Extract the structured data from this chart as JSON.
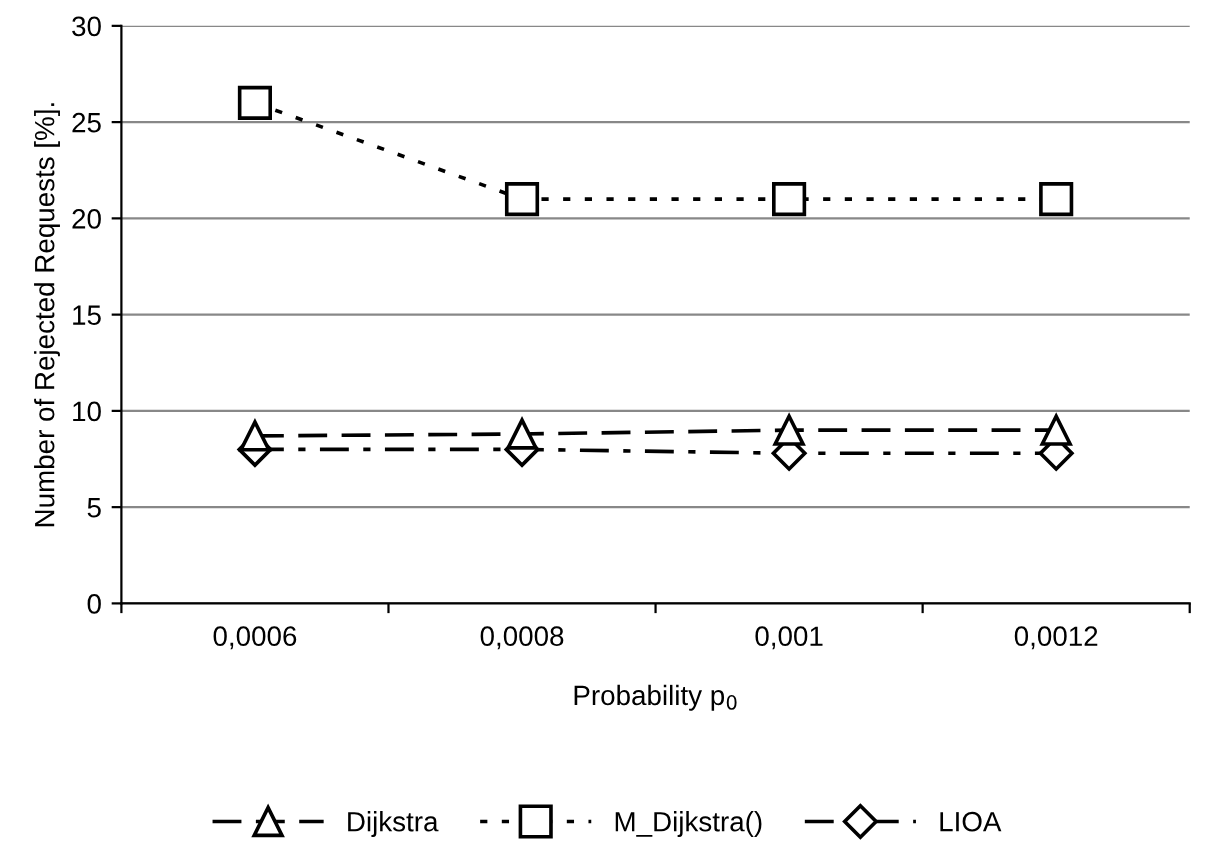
{
  "chart_data": {
    "type": "line",
    "xlabel": "Probability p$_{0}$",
    "ylabel": "Number of Rejected Requests [%].",
    "categories": [
      "0,0006",
      "0,0008",
      "0,001",
      "0,0012"
    ],
    "series": [
      {
        "name": "Dijkstra",
        "color": "#000000",
        "values": [
          8.7,
          8.8,
          9.0,
          9.0
        ],
        "marker": "triangle",
        "line_style": "dashed"
      },
      {
        "name": "M_Dijkstra()",
        "color": "#000000",
        "values": [
          26,
          21,
          21,
          21
        ],
        "marker": "square",
        "line_style": "dotted"
      },
      {
        "name": "LIOA",
        "color": "#000000",
        "values": [
          8,
          8,
          7.8,
          7.8
        ],
        "marker": "diamond",
        "line_style": "dashdot"
      }
    ],
    "ylim": [
      0,
      30
    ],
    "yticks": [
      0,
      5,
      10,
      15,
      20,
      25,
      30
    ],
    "grid": "y",
    "legend": "bottom"
  }
}
